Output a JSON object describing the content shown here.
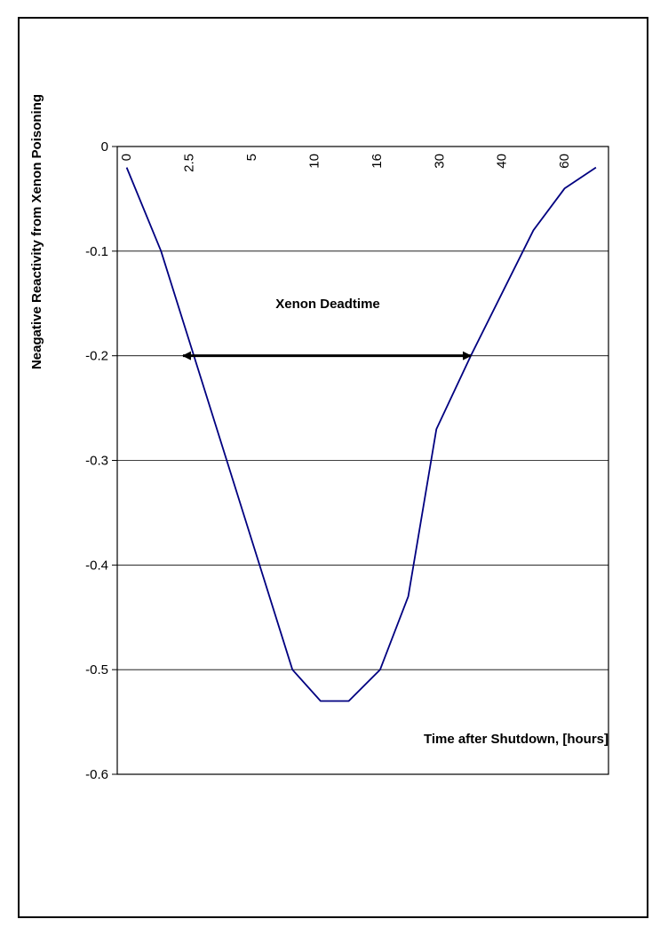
{
  "chart_data": {
    "type": "line",
    "title": "",
    "xlabel": "Time after Shutdown, [hours]",
    "ylabel": "Neagative Reactivity from Xenon Poisoning",
    "ylim": [
      -0.6,
      0
    ],
    "yticks": [
      0,
      -0.1,
      -0.2,
      -0.3,
      -0.4,
      -0.5,
      -0.6
    ],
    "grid": true,
    "x_tick_labels": [
      "0",
      "2.5",
      "5",
      "10",
      "16",
      "30",
      "40",
      "60"
    ],
    "x_tick_positions": [
      0,
      2,
      4,
      6,
      8,
      10,
      12,
      14
    ],
    "xlim": [
      -0.3,
      15.4
    ],
    "series": [
      {
        "color": "#000080",
        "x": [
          0,
          1.1,
          5.3,
          6.2,
          7.1,
          8.1,
          9.0,
          9.9,
          11.0,
          13.0,
          14.0,
          15.0
        ],
        "y": [
          -0.02,
          -0.1,
          -0.5,
          -0.53,
          -0.53,
          -0.5,
          -0.43,
          -0.27,
          -0.2,
          -0.08,
          -0.04,
          -0.02
        ]
      }
    ],
    "annotations": [
      {
        "text": "Xenon Deadtime",
        "arrow_from_x": 1.8,
        "arrow_to_x": 11.0,
        "arrow_y": -0.2
      }
    ]
  }
}
